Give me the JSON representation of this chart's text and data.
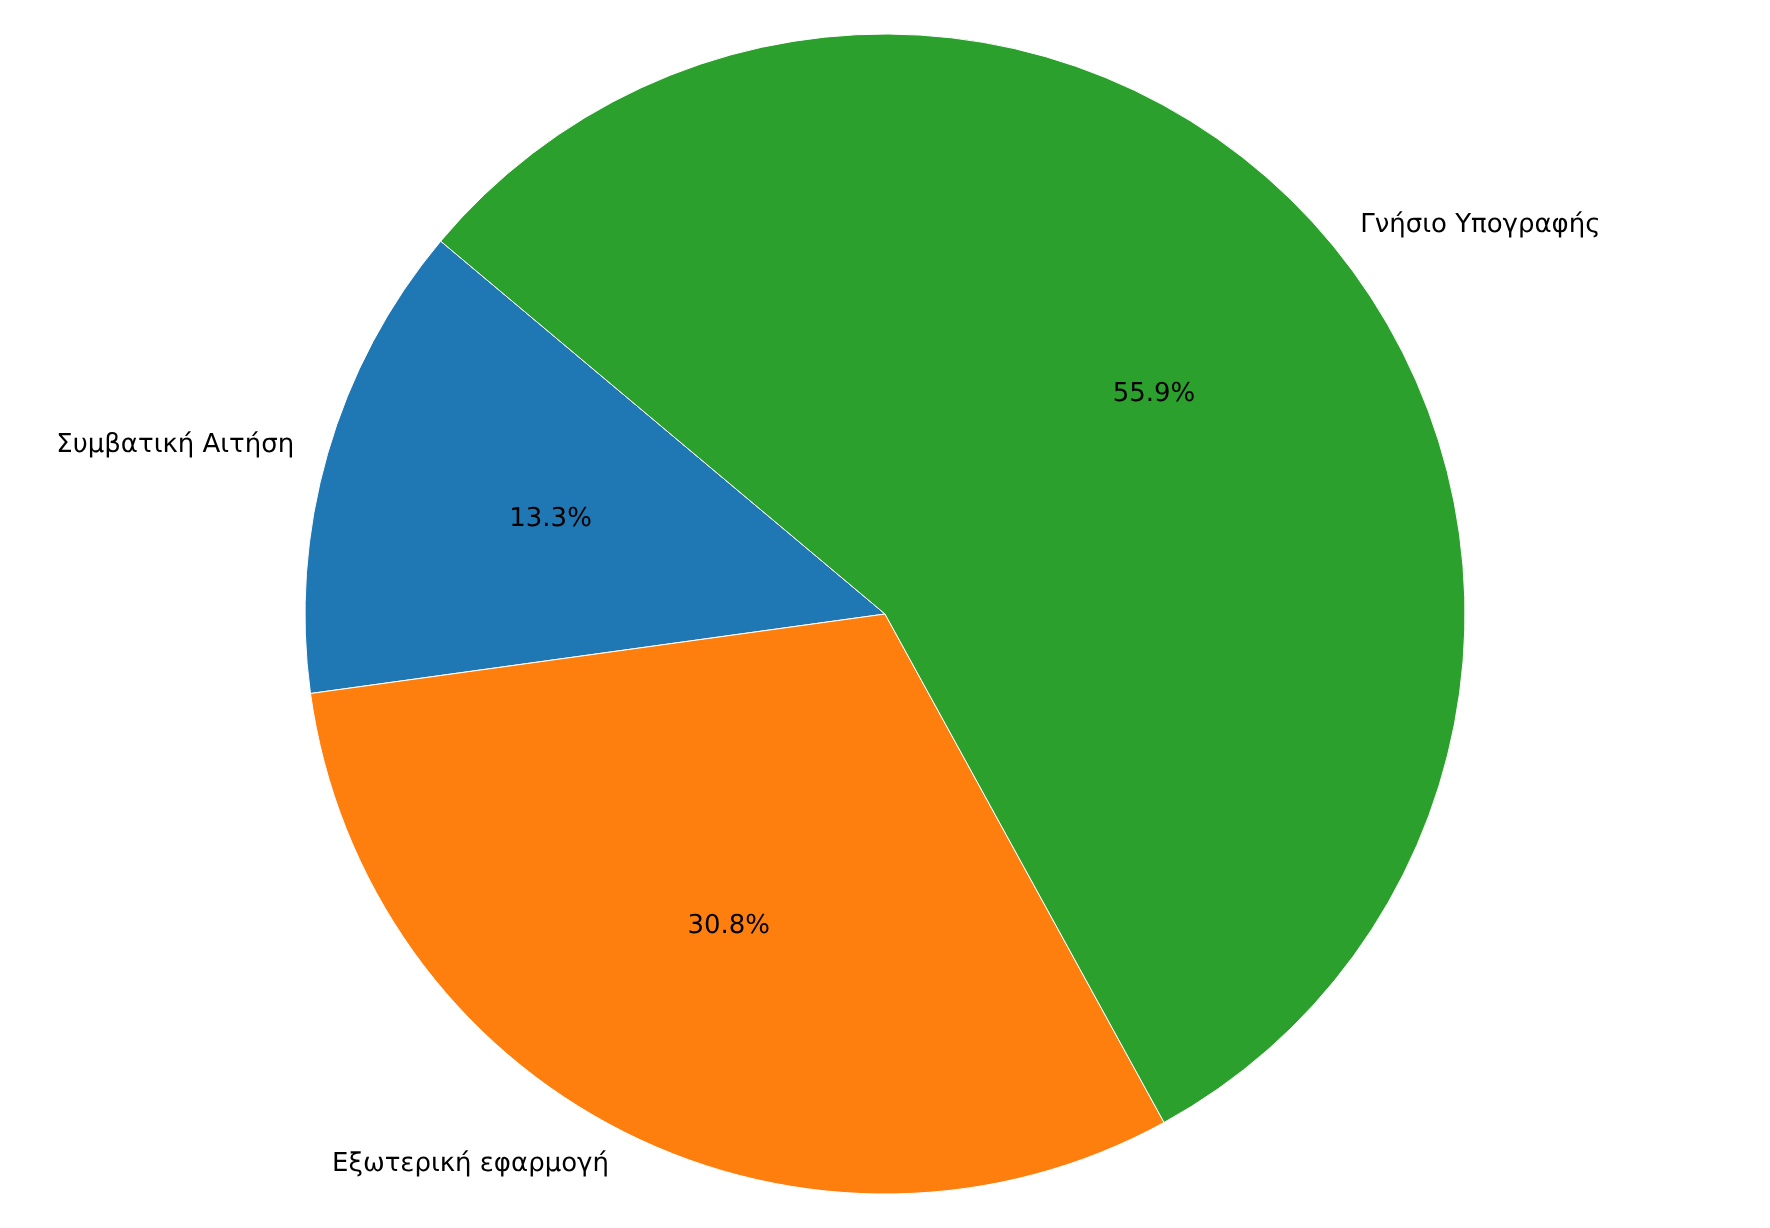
{
  "chart_data": {
    "type": "pie",
    "categories": [
      "Συμβατική Αιτήση",
      "Εξωτερική εφαρμογή",
      "Γνήσιο Υπογραφής"
    ],
    "values": [
      13.3,
      30.8,
      55.9
    ],
    "value_labels": [
      "13.3%",
      "30.8%",
      "55.9%"
    ],
    "colors": [
      "#1f77b4",
      "#ff7f0e",
      "#2ca02c"
    ]
  }
}
